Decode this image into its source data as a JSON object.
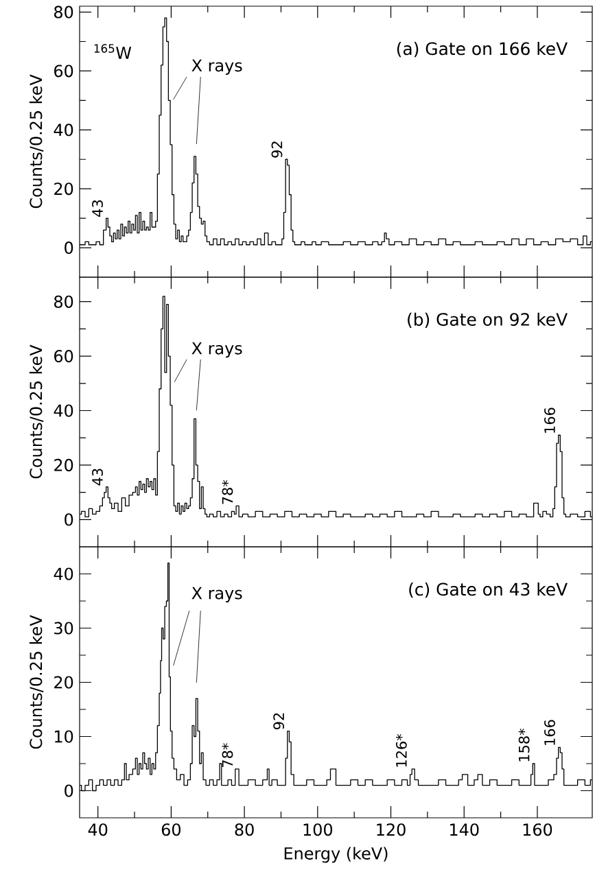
{
  "chart_data": [
    {
      "type": "step",
      "title": "(a) Gate on 166 keV",
      "ylabel": "Counts/0.25 keV",
      "color": "#000000",
      "tick_labels": "y",
      "xlim": [
        35,
        175
      ],
      "xticks": [
        40,
        60,
        80,
        100,
        120,
        140,
        160
      ],
      "ylim": [
        -10,
        82
      ],
      "yticks": [
        0,
        20,
        40,
        60,
        80
      ],
      "annotations": [
        "$^{165}$W",
        "X rays",
        {
          "text": "43",
          "x": 42.5,
          "y": 10
        },
        {
          "text": "92",
          "x": 91.5,
          "y": 30
        }
      ],
      "x": [
        35,
        36,
        37,
        38,
        39,
        40,
        41,
        42,
        42.5,
        43,
        43.5,
        44,
        44.5,
        45,
        45.5,
        46,
        46.5,
        47,
        47.5,
        48,
        48.5,
        49,
        49.5,
        50,
        50.5,
        51,
        51.5,
        52,
        52.5,
        53,
        53.5,
        54,
        54.5,
        55,
        55.5,
        56,
        56.5,
        57,
        57.5,
        58,
        58.5,
        59,
        59.5,
        60,
        60.5,
        61,
        61.5,
        62,
        62.5,
        63,
        63.5,
        64,
        64.5,
        65,
        65.5,
        66,
        66.5,
        67,
        67.5,
        68,
        68.5,
        69,
        69.5,
        70,
        71,
        72,
        73,
        74,
        75,
        76,
        77,
        78,
        79,
        80,
        81,
        82,
        83,
        84,
        85,
        86,
        87,
        88,
        89,
        90,
        90.5,
        91,
        91.5,
        92,
        92.5,
        93,
        93.5,
        94,
        95,
        96,
        97,
        98,
        99,
        100,
        102,
        104,
        106,
        108,
        110,
        112,
        114,
        116,
        117,
        118,
        118.5,
        119,
        120,
        122,
        124,
        126,
        128,
        130,
        132,
        134,
        136,
        138,
        140,
        142,
        144,
        146,
        148,
        150,
        152,
        154,
        156,
        158,
        160,
        162,
        164,
        166,
        168,
        170,
        172,
        173,
        174,
        175
      ],
      "values": [
        1,
        1,
        2,
        1,
        1,
        2,
        1,
        6,
        10,
        7,
        4,
        2,
        5,
        3,
        6,
        3,
        8,
        4,
        7,
        5,
        9,
        5,
        8,
        6,
        11,
        5,
        12,
        6,
        9,
        6,
        7,
        6,
        12,
        7,
        7,
        9,
        25,
        45,
        62,
        75,
        78,
        70,
        50,
        35,
        18,
        8,
        3,
        6,
        2,
        4,
        2,
        2,
        4,
        6,
        12,
        22,
        31,
        25,
        14,
        10,
        8,
        9,
        4,
        2,
        1,
        3,
        1,
        3,
        1,
        2,
        1,
        3,
        1,
        2,
        1,
        2,
        1,
        3,
        1,
        5,
        1,
        2,
        1,
        1,
        3,
        12,
        30,
        28,
        18,
        6,
        2,
        1,
        1,
        2,
        1,
        1,
        2,
        1,
        2,
        1,
        1,
        2,
        1,
        2,
        1,
        2,
        1,
        2,
        5,
        3,
        1,
        2,
        1,
        3,
        1,
        2,
        1,
        3,
        1,
        2,
        1,
        1,
        2,
        1,
        1,
        2,
        1,
        3,
        1,
        3,
        1,
        2,
        1,
        3,
        2,
        3,
        1,
        4,
        1,
        2
      ]
    },
    {
      "type": "step",
      "title": "(b) Gate on 92 keV",
      "ylabel": "Counts/0.25 keV",
      "color": "#000000",
      "tick_labels": "y",
      "xlim": [
        35,
        175
      ],
      "xticks": [
        40,
        60,
        80,
        100,
        120,
        140,
        160
      ],
      "ylim": [
        -10,
        89
      ],
      "yticks": [
        0,
        20,
        40,
        60,
        80
      ],
      "annotations": [
        "X rays",
        {
          "text": "43",
          "x": 42.5,
          "y": 12
        },
        {
          "text": "78*",
          "x": 78,
          "y": 5
        },
        {
          "text": "166",
          "x": 166,
          "y": 31
        }
      ],
      "x": [
        35,
        36,
        37,
        38,
        39,
        40,
        41,
        41.5,
        42,
        42.5,
        43,
        43.5,
        44,
        45,
        46,
        47,
        48,
        49,
        50,
        50.5,
        51,
        51.5,
        52,
        52.5,
        53,
        53.5,
        54,
        54.5,
        55,
        55.5,
        56,
        56.5,
        57,
        57.5,
        58,
        58.5,
        59,
        59.5,
        60,
        60.5,
        61,
        61.5,
        62,
        62.5,
        63,
        63.5,
        64,
        64.5,
        65,
        65.5,
        66,
        66.5,
        67,
        67.5,
        68,
        68.5,
        69,
        69.5,
        70,
        71,
        72,
        73,
        74,
        75,
        76,
        77,
        77.5,
        78,
        79,
        80,
        82,
        84,
        86,
        88,
        90,
        92,
        94,
        96,
        98,
        100,
        102,
        104,
        106,
        108,
        110,
        112,
        114,
        116,
        118,
        120,
        122,
        124,
        126,
        128,
        130,
        132,
        134,
        136,
        138,
        140,
        142,
        144,
        146,
        148,
        150,
        152,
        154,
        156,
        158,
        160,
        160.5,
        161,
        162,
        163,
        164,
        164.5,
        165,
        165.5,
        166,
        166.5,
        167,
        167.5,
        168,
        170,
        172,
        174,
        175
      ],
      "values": [
        2,
        3,
        1,
        4,
        2,
        3,
        5,
        8,
        10,
        12,
        8,
        6,
        4,
        6,
        3,
        8,
        5,
        9,
        10,
        12,
        9,
        14,
        11,
        13,
        10,
        15,
        12,
        14,
        11,
        15,
        9,
        25,
        48,
        70,
        82,
        54,
        79,
        60,
        42,
        20,
        5,
        3,
        6,
        2,
        5,
        3,
        6,
        4,
        5,
        8,
        15,
        37,
        20,
        14,
        4,
        12,
        4,
        2,
        1,
        2,
        1,
        3,
        1,
        2,
        1,
        3,
        2,
        5,
        1,
        2,
        1,
        3,
        1,
        2,
        1,
        3,
        1,
        2,
        1,
        2,
        1,
        3,
        1,
        2,
        1,
        1,
        2,
        1,
        2,
        1,
        3,
        1,
        1,
        2,
        1,
        3,
        1,
        1,
        2,
        1,
        1,
        2,
        1,
        2,
        1,
        3,
        1,
        2,
        1,
        6,
        2,
        1,
        3,
        2,
        1,
        4,
        12,
        28,
        31,
        25,
        8,
        2,
        1,
        2,
        1,
        3,
        1
      ]
    },
    {
      "type": "step",
      "title": "(c) Gate on 43 keV",
      "xlabel": "Energy (keV)",
      "ylabel": "Counts/0.25 keV",
      "color": "#000000",
      "xlim": [
        35,
        175
      ],
      "xticks": [
        40,
        60,
        80,
        100,
        120,
        140,
        160
      ],
      "ylim": [
        -5,
        45
      ],
      "yticks": [
        0,
        10,
        20,
        30,
        40
      ],
      "annotations": [
        "X rays",
        {
          "text": "78*",
          "x": 78,
          "y": 4
        },
        {
          "text": "92",
          "x": 92,
          "y": 11
        },
        {
          "text": "126*",
          "x": 125.5,
          "y": 4
        },
        {
          "text": "158*",
          "x": 159,
          "y": 5
        },
        {
          "text": "166",
          "x": 166,
          "y": 8
        }
      ],
      "x": [
        35,
        36,
        37,
        38,
        39,
        40,
        41,
        42,
        43,
        44,
        45,
        46,
        47,
        47.5,
        48,
        49,
        50,
        50.5,
        51,
        51.5,
        52,
        52.5,
        53,
        53.5,
        54,
        54.5,
        55,
        55.5,
        56,
        56.5,
        57,
        57.2,
        57.6,
        58,
        58.5,
        58.9,
        59.3,
        59.6,
        60,
        60.5,
        61,
        62,
        63,
        64,
        65,
        65.5,
        66,
        66.5,
        67,
        67.5,
        68,
        68.5,
        69,
        70,
        71,
        72,
        73,
        73.5,
        74,
        75,
        76,
        77,
        78,
        79,
        80,
        82,
        84,
        86,
        86.5,
        87,
        88,
        90,
        91,
        91.5,
        92,
        92.5,
        93,
        94,
        96,
        98,
        100,
        102,
        103,
        104,
        106,
        108,
        110,
        112,
        114,
        116,
        118,
        120,
        122,
        124,
        125,
        125.5,
        126,
        127,
        128,
        130,
        132,
        134,
        136,
        138,
        139,
        140,
        142,
        143.5,
        144,
        146,
        148,
        150,
        152,
        154,
        156,
        158,
        158.5,
        159,
        159.5,
        160,
        162,
        164,
        165,
        165.5,
        166,
        166.5,
        167,
        167.5,
        168,
        170,
        172,
        174,
        175
      ],
      "values": [
        1,
        0,
        1,
        2,
        0,
        1,
        2,
        1,
        2,
        1,
        2,
        1,
        2,
        5,
        2,
        3,
        4,
        6,
        3,
        5,
        4,
        7,
        5,
        4,
        6,
        3,
        5,
        4,
        7,
        12,
        18,
        24,
        30,
        28,
        34,
        35,
        42,
        21,
        11,
        6,
        4,
        2,
        3,
        1,
        2,
        5,
        12,
        10,
        17,
        11,
        5,
        7,
        2,
        1,
        2,
        1,
        2,
        5,
        1,
        1,
        2,
        1,
        4,
        1,
        1,
        2,
        1,
        2,
        4,
        1,
        2,
        1,
        1,
        6,
        11,
        9,
        3,
        1,
        1,
        2,
        1,
        1,
        2,
        4,
        1,
        1,
        2,
        1,
        2,
        1,
        1,
        2,
        1,
        2,
        1,
        3,
        4,
        2,
        1,
        1,
        1,
        2,
        1,
        1,
        2,
        3,
        1,
        2,
        3,
        1,
        2,
        1,
        1,
        2,
        1,
        1,
        3,
        5,
        1,
        1,
        1,
        2,
        3,
        6,
        8,
        7,
        4,
        1,
        1,
        1,
        2,
        1,
        2
      ]
    }
  ]
}
